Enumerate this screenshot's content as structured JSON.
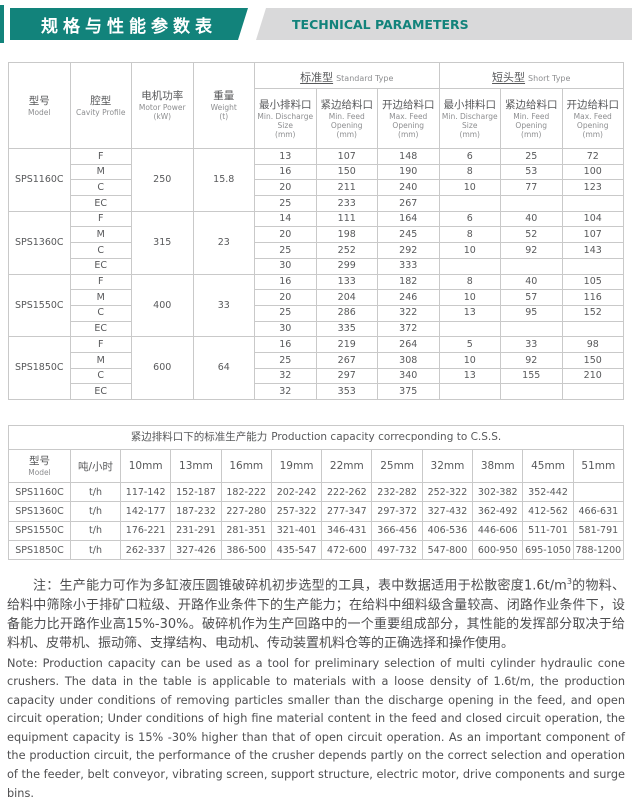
{
  "colors": {
    "teal": "#12837b",
    "band_gray": "#d9d9da",
    "border_gray": "#c9c9c9",
    "text_gray": "#58595b",
    "muted_gray": "#8d8e90"
  },
  "banner": {
    "title_zh": "规格与性能参数表",
    "title_en": "TECHNICAL PARAMETERS"
  },
  "spec_table": {
    "fixed_columns": [
      {
        "zh": "型号",
        "en": [
          "Model"
        ]
      },
      {
        "zh": "腔型",
        "en": [
          "Cavity Profile"
        ]
      },
      {
        "zh": "电机功率",
        "en": [
          "Motor Power",
          "(kW)"
        ]
      },
      {
        "zh": "重量",
        "en": [
          "Weight",
          "(t)"
        ]
      }
    ],
    "groups_header": [
      {
        "zh": "标准型",
        "en": "Standard Type"
      },
      {
        "zh": "短头型",
        "en": "Short Type"
      }
    ],
    "sub_columns": [
      {
        "zh": "最小排料口",
        "en": [
          "Min. Discharge",
          "Size",
          "(mm)"
        ]
      },
      {
        "zh": "紧边给料口",
        "en": [
          "Min. Feed",
          "Opening",
          "(mm)"
        ]
      },
      {
        "zh": "开边给料口",
        "en": [
          "Max. Feed",
          "Opening",
          "(mm)"
        ]
      }
    ],
    "groups": [
      {
        "model": "SPS1160C",
        "power": "250",
        "weight": "15.8",
        "rows": [
          {
            "cavity": "F",
            "std": [
              "13",
              "107",
              "148"
            ],
            "short": [
              "6",
              "25",
              "72"
            ]
          },
          {
            "cavity": "M",
            "std": [
              "16",
              "150",
              "190"
            ],
            "short": [
              "8",
              "53",
              "100"
            ]
          },
          {
            "cavity": "C",
            "std": [
              "20",
              "211",
              "240"
            ],
            "short": [
              "10",
              "77",
              "123"
            ]
          },
          {
            "cavity": "EC",
            "std": [
              "25",
              "233",
              "267"
            ],
            "short": [
              "",
              "",
              ""
            ]
          }
        ]
      },
      {
        "model": "SPS1360C",
        "power": "315",
        "weight": "23",
        "rows": [
          {
            "cavity": "F",
            "std": [
              "14",
              "111",
              "164"
            ],
            "short": [
              "6",
              "40",
              "104"
            ]
          },
          {
            "cavity": "M",
            "std": [
              "20",
              "198",
              "245"
            ],
            "short": [
              "8",
              "52",
              "107"
            ]
          },
          {
            "cavity": "C",
            "std": [
              "25",
              "252",
              "292"
            ],
            "short": [
              "10",
              "92",
              "143"
            ]
          },
          {
            "cavity": "EC",
            "std": [
              "30",
              "299",
              "333"
            ],
            "short": [
              "",
              "",
              ""
            ]
          }
        ]
      },
      {
        "model": "SPS1550C",
        "power": "400",
        "weight": "33",
        "rows": [
          {
            "cavity": "F",
            "std": [
              "16",
              "133",
              "182"
            ],
            "short": [
              "8",
              "40",
              "105"
            ]
          },
          {
            "cavity": "M",
            "std": [
              "20",
              "204",
              "246"
            ],
            "short": [
              "10",
              "57",
              "116"
            ]
          },
          {
            "cavity": "C",
            "std": [
              "25",
              "286",
              "322"
            ],
            "short": [
              "13",
              "95",
              "152"
            ]
          },
          {
            "cavity": "EC",
            "std": [
              "30",
              "335",
              "372"
            ],
            "short": [
              "",
              "",
              ""
            ]
          }
        ]
      },
      {
        "model": "SPS1850C",
        "power": "600",
        "weight": "64",
        "rows": [
          {
            "cavity": "F",
            "std": [
              "16",
              "219",
              "264"
            ],
            "short": [
              "5",
              "33",
              "98"
            ]
          },
          {
            "cavity": "M",
            "std": [
              "25",
              "267",
              "308"
            ],
            "short": [
              "10",
              "92",
              "150"
            ]
          },
          {
            "cavity": "C",
            "std": [
              "32",
              "297",
              "340"
            ],
            "short": [
              "13",
              "155",
              "210"
            ]
          },
          {
            "cavity": "EC",
            "std": [
              "32",
              "353",
              "375"
            ],
            "short": [
              "",
              "",
              ""
            ]
          }
        ]
      }
    ]
  },
  "capacity_table": {
    "title_zh": "紧边排料口下的标准生产能力",
    "title_en": "Production capacity correcponding to C.S.S.",
    "col_model_zh": "型号",
    "col_model_en": "Model",
    "col_unit": "吨/小时",
    "sizes": [
      "10mm",
      "13mm",
      "16mm",
      "19mm",
      "22mm",
      "25mm",
      "32mm",
      "38mm",
      "45mm",
      "51mm"
    ],
    "rows": [
      {
        "model": "SPS1160C",
        "unit": "t/h",
        "values": [
          "117-142",
          "152-187",
          "182-222",
          "202-242",
          "222-262",
          "232-282",
          "252-322",
          "302-382",
          "352-442",
          ""
        ]
      },
      {
        "model": "SPS1360C",
        "unit": "t/h",
        "values": [
          "142-177",
          "187-232",
          "227-280",
          "257-322",
          "277-347",
          "297-372",
          "327-432",
          "362-492",
          "412-562",
          "466-631"
        ]
      },
      {
        "model": "SPS1550C",
        "unit": "t/h",
        "values": [
          "176-221",
          "231-291",
          "281-351",
          "321-401",
          "346-431",
          "366-456",
          "406-536",
          "446-606",
          "511-701",
          "581-791"
        ]
      },
      {
        "model": "SPS1850C",
        "unit": "t/h",
        "values": [
          "262-337",
          "327-426",
          "386-500",
          "435-547",
          "472-600",
          "497-732",
          "547-800",
          "600-950",
          "695-1050",
          "788-1200"
        ]
      }
    ]
  },
  "notes": {
    "zh_part1": "注：生产能力可作为多缸液压圆锥破碎机初步选型的工具，表中数据适用于松散密度1.6t/m",
    "zh_sup": "3",
    "zh_part2": "的物料、给料中筛除小于排矿口粒级、开路作业条件下的生产能力；在给料中细料级含量较高、闭路作业条件下，设备能力比开路作业高15%-30%。破碎机作为生产回路中的一个重要组成部分，其性能的发挥部分取决于给料机、皮带机、振动筛、支撑结构、电动机、传动装置机料仓等的正确选择和操作使用。",
    "en": "Note: Production capacity can be used as a tool for preliminary selection of multi cylinder hydraulic cone crushers. The data in the table is applicable to materials with a loose density of 1.6t/m, the production capacity under conditions of removing particles smaller than the discharge opening in the feed, and open circuit operation; Under conditions of high fine material content in the feed and closed circuit operation, the equipment capacity is 15% -30% higher than that of open circuit operation. As an important component of the production circuit, the performance of the crusher depends partly on the correct selection and operation of the feeder, belt conveyor, vibrating screen, support structure, electric motor, drive components and surge bins."
  }
}
